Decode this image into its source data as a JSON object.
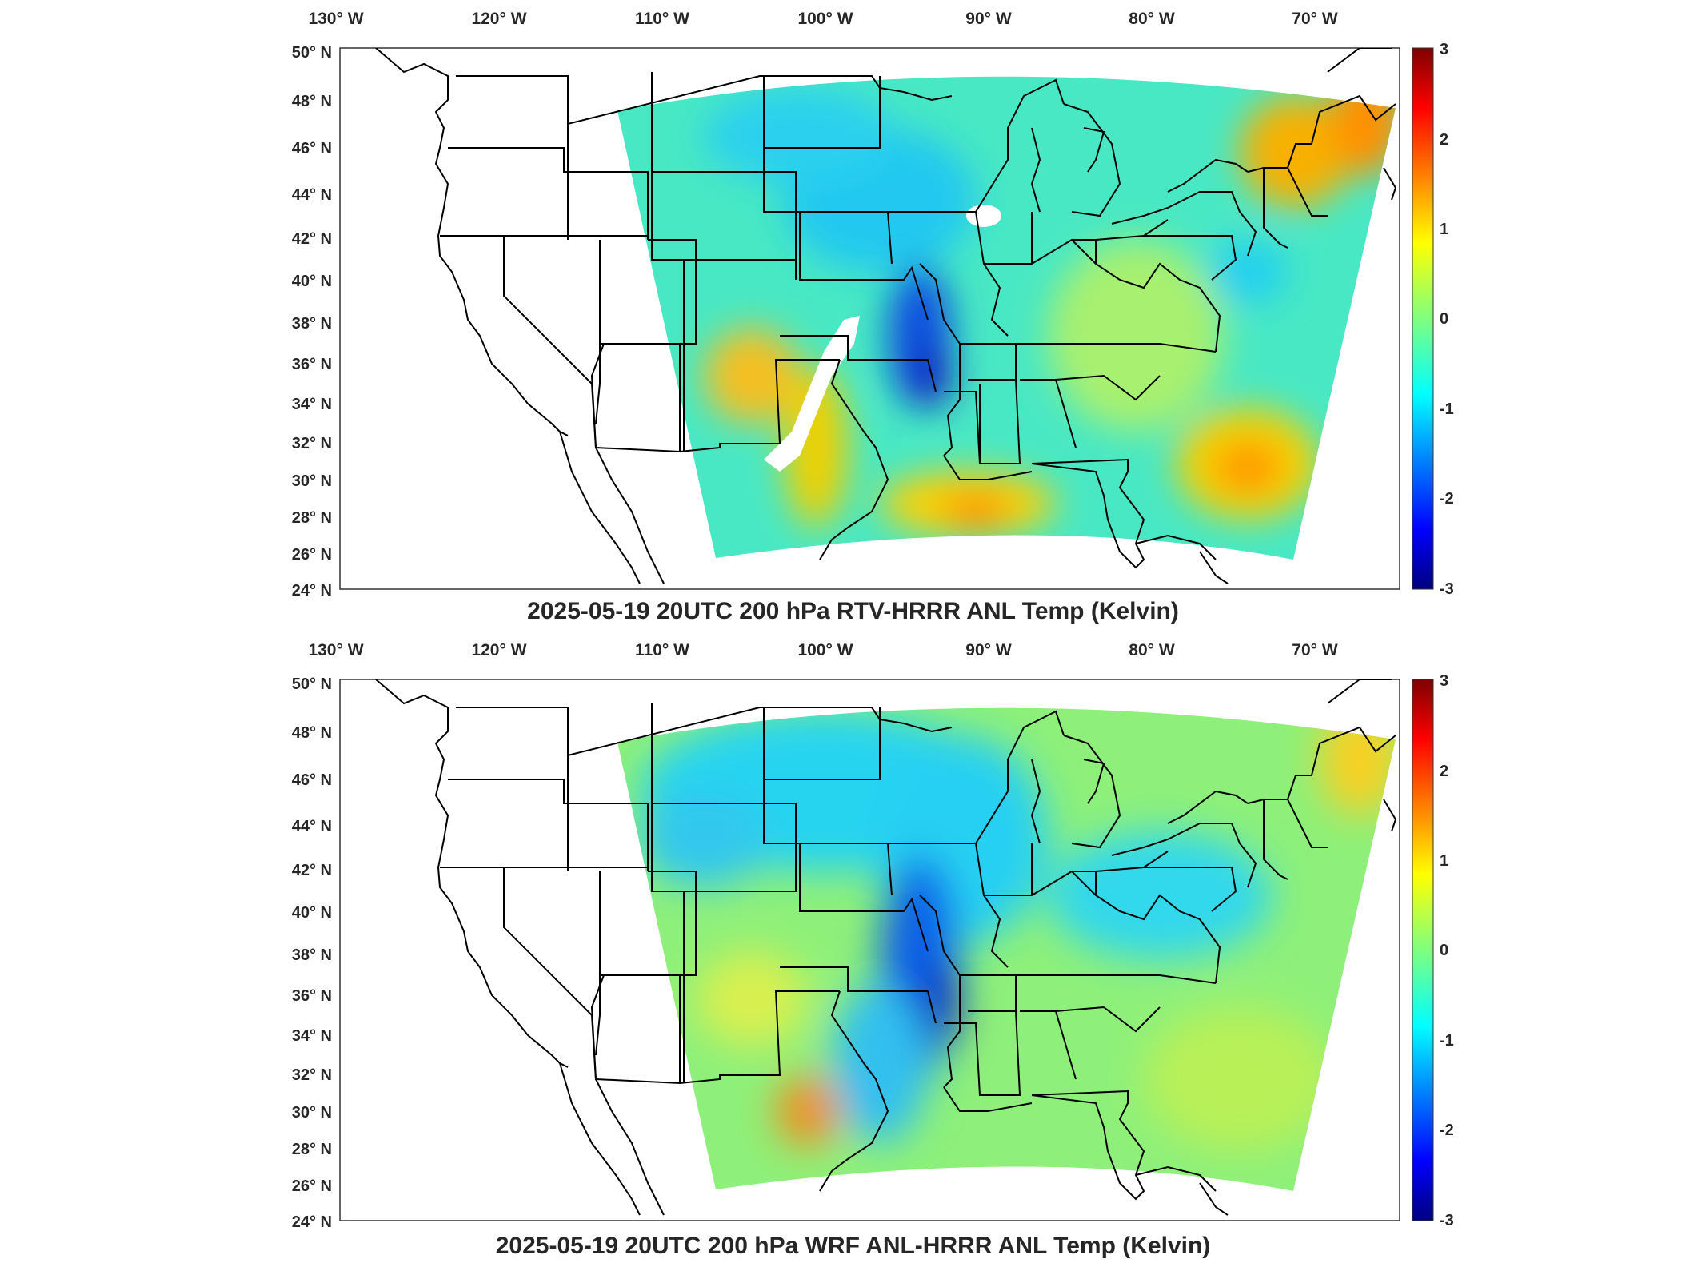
{
  "panels": [
    {
      "id": "rtv",
      "title": "2025-05-19 20UTC 200 hPa RTV-HRRR ANL Temp (Kelvin)"
    },
    {
      "id": "wrf",
      "title": "2025-05-19 20UTC 200 hPa WRF ANL-HRRR ANL Temp (Kelvin)"
    }
  ],
  "axes": {
    "longitude_ticks": [
      "130° W",
      "120° W",
      "110° W",
      "100° W",
      "90° W",
      "80° W",
      "70° W"
    ],
    "longitude_values": [
      -130,
      -120,
      -110,
      -100,
      -90,
      -80,
      -70
    ],
    "latitude_ticks": [
      "50° N",
      "48° N",
      "46° N",
      "44° N",
      "42° N",
      "40° N",
      "38° N",
      "36° N",
      "34° N",
      "32° N",
      "30° N",
      "28° N",
      "26° N",
      "24° N"
    ],
    "latitude_values": [
      50,
      48,
      46,
      44,
      42,
      40,
      38,
      36,
      34,
      32,
      30,
      28,
      26,
      24
    ],
    "lon_range": [
      -131,
      -65.4
    ],
    "lat_range": [
      24,
      50
    ]
  },
  "colorbar": {
    "ticks": [
      "3",
      "2",
      "1",
      "0",
      "-1",
      "-2",
      "-3"
    ],
    "range": [
      -3,
      3
    ],
    "colormap": "jet",
    "units": "Kelvin"
  },
  "colors": {
    "background_field": "#3ee0c0",
    "coastline": "#000000",
    "missing": "#ffffff"
  }
}
